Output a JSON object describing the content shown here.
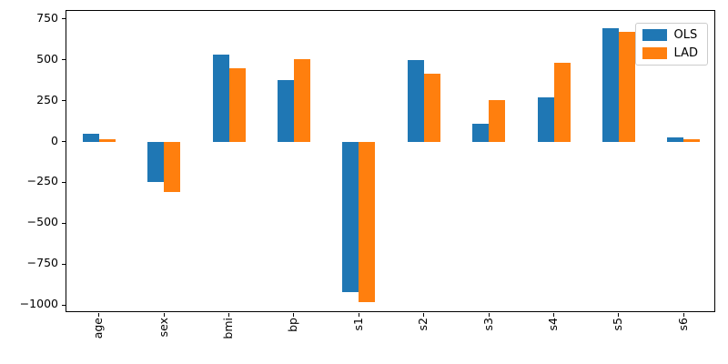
{
  "chart_data": {
    "type": "bar",
    "title": "",
    "xlabel": "",
    "ylabel": "",
    "categories": [
      "age",
      "sex",
      "bmi",
      "bp",
      "s1",
      "s2",
      "s3",
      "s4",
      "s5",
      "s6"
    ],
    "series": [
      {
        "name": "OLS",
        "color": "#1f77b4",
        "values": [
          45,
          -245,
          530,
          375,
          -920,
          500,
          110,
          270,
          695,
          27
        ]
      },
      {
        "name": "LAD",
        "color": "#ff7f0e",
        "values": [
          15,
          -310,
          450,
          505,
          -985,
          415,
          255,
          480,
          670,
          13
        ]
      }
    ],
    "ylim": [
      -1050,
      800
    ],
    "yticks": [
      750,
      500,
      250,
      0,
      -250,
      -500,
      -750,
      -1000
    ],
    "x_tick_rotation": 90,
    "grid": false,
    "legend": {
      "position": "upper right",
      "entries": [
        "OLS",
        "LAD"
      ]
    },
    "colors": {
      "axis": "#000000",
      "background": "#ffffff",
      "legend_border": "#cccccc"
    }
  }
}
